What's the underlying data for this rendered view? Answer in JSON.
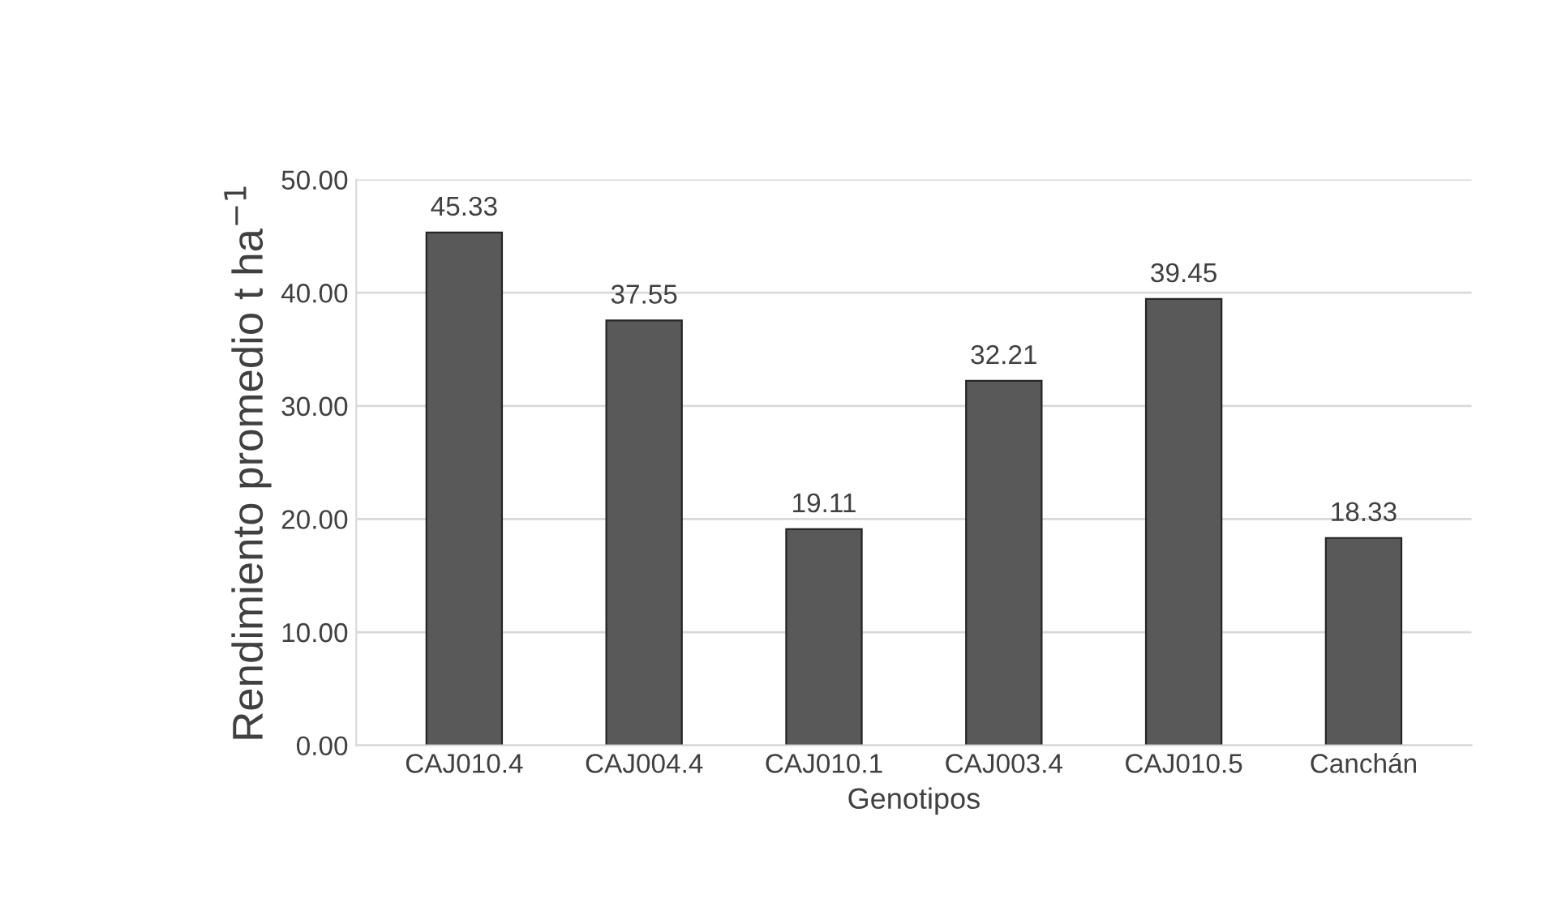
{
  "chart_data": {
    "type": "bar",
    "xlabel": "Genotipos",
    "ylabel": "Rendimiento promedio t ha$^{−1}$",
    "categories": [
      "CAJ010.4",
      "CAJ004.4",
      "CAJ010.1",
      "CAJ003.4",
      "CAJ010.5",
      "Canchán"
    ],
    "values": [
      45.33,
      37.55,
      19.11,
      32.21,
      39.45,
      18.33
    ],
    "value_labels": [
      "45.33",
      "37.55",
      "19.11",
      "32.21",
      "39.45",
      "18.33"
    ],
    "color": "#595959",
    "ylim": [
      0,
      50
    ],
    "yticks": [
      {
        "value": 0,
        "label": "0.00"
      },
      {
        "value": 10,
        "label": "10.00"
      },
      {
        "value": 20,
        "label": "20.00"
      },
      {
        "value": 30,
        "label": "30.00"
      },
      {
        "value": 40,
        "label": "40.00"
      },
      {
        "value": 50,
        "label": "50.00"
      }
    ],
    "grid": "y"
  }
}
